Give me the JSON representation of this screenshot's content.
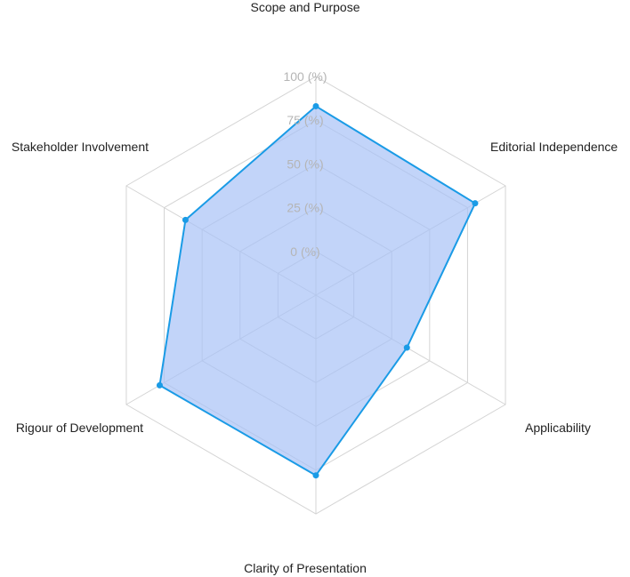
{
  "chart_data": {
    "type": "radar",
    "title": "",
    "axes": [
      "Scope and Purpose",
      "Editorial Independence",
      "Applicability",
      "Clarity of Presentation",
      "Rigour of Development",
      "Stakeholder Involvement"
    ],
    "tick_labels": [
      "0 (%)",
      "25 (%)",
      "50 (%)",
      "75 (%)",
      "100 (%)"
    ],
    "rlim": [
      -25,
      100
    ],
    "grid": true,
    "series": [
      {
        "values": [
          83,
          80,
          35,
          78,
          78,
          61
        ],
        "line_color": "#1a9be6",
        "fill_color": "#a8c2f7"
      }
    ]
  }
}
